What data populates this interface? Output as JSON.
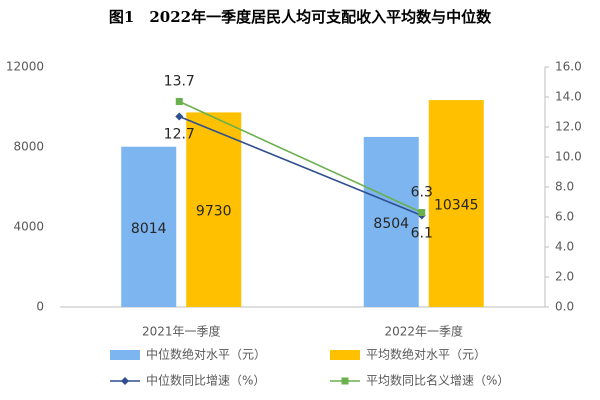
{
  "chart_data": {
    "type": "bar",
    "title": "图1　2022年一季度居民人均可支配收入平均数与中位数",
    "categories": [
      "2021年一季度",
      "2022年一季度"
    ],
    "series": [
      {
        "name": "中位数绝对水平（元）",
        "type": "bar",
        "color": "#7db5f0",
        "values": [
          8014,
          8504
        ]
      },
      {
        "name": "平均数绝对水平（元）",
        "type": "bar",
        "color": "#ffc000",
        "values": [
          9730,
          10345
        ]
      },
      {
        "name": "中位数同比增速（%）",
        "type": "line",
        "axis": "y2",
        "marker": "diamond",
        "color": "#2f4f8f",
        "values": [
          12.7,
          6.1
        ]
      },
      {
        "name": "平均数同比名义增速（%）",
        "type": "line",
        "axis": "y2",
        "marker": "square",
        "color": "#6ab04c",
        "values": [
          13.7,
          6.3
        ]
      }
    ],
    "ylim": [
      0,
      12000
    ],
    "yticks": [
      0,
      4000,
      8000,
      12000
    ],
    "y2lim": [
      0,
      16
    ],
    "y2ticks": [
      {
        "value": 0,
        "label": "0.0"
      },
      {
        "value": 2,
        "label": "2.0"
      },
      {
        "value": 4,
        "label": "4.0"
      },
      {
        "value": 6,
        "label": "6.0"
      },
      {
        "value": 8,
        "label": "8.0"
      },
      {
        "value": 10,
        "label": "10.0"
      },
      {
        "value": 12,
        "label": "12.0"
      },
      {
        "value": 14,
        "label": "14.0"
      },
      {
        "value": 16,
        "label": "16.0"
      }
    ],
    "grid": false
  }
}
